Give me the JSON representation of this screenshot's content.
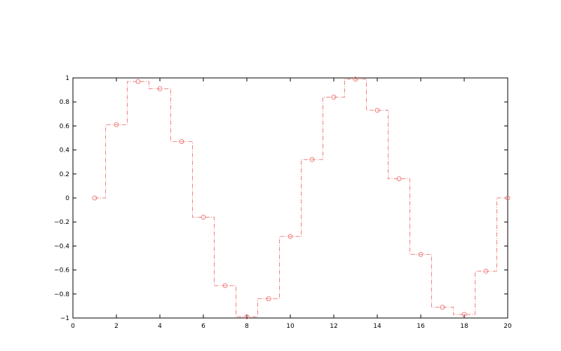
{
  "chart_data": {
    "type": "line",
    "style": "stairs-with-circle-markers",
    "title": "",
    "xlabel": "",
    "ylabel": "",
    "xlim": [
      0,
      20
    ],
    "ylim": [
      -1,
      1
    ],
    "grid": false,
    "legend": "none",
    "x_ticks": [
      "0",
      "2",
      "4",
      "6",
      "8",
      "10",
      "12",
      "14",
      "16",
      "18",
      "20"
    ],
    "y_ticks": [
      "−1",
      "−0.8",
      "−0.6",
      "−0.4",
      "−0.2",
      "0",
      "0.2",
      "0.4",
      "0.6",
      "0.8",
      "1"
    ],
    "series": [
      {
        "color": "#f08080",
        "x": [
          1,
          2,
          3,
          4,
          5,
          6,
          7,
          8,
          9,
          10,
          11,
          12,
          13,
          14,
          15,
          16,
          17,
          18,
          19,
          20
        ],
        "values": [
          0,
          0.61,
          0.97,
          0.91,
          0.47,
          -0.16,
          -0.73,
          -0.99,
          -0.84,
          -0.32,
          0.32,
          0.84,
          0.99,
          0.73,
          0.16,
          -0.47,
          -0.91,
          -0.97,
          -0.61,
          0
        ]
      }
    ]
  }
}
